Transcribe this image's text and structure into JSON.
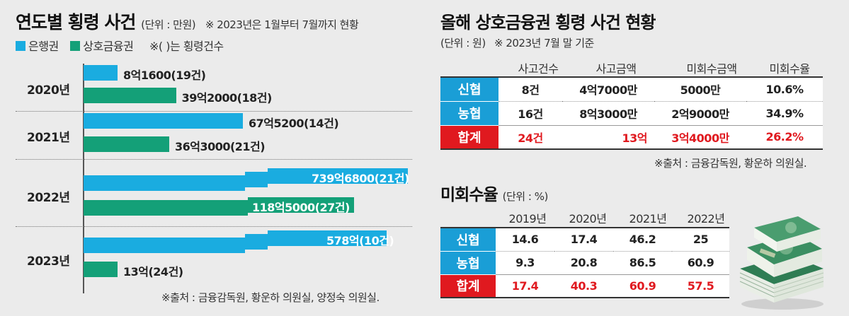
{
  "left": {
    "title": "연도별 횡령 사건",
    "unit": "(단위 : 만원)",
    "note": "※ 2023년은 1월부터 7월까지 현황",
    "legend": {
      "bank": "은행권",
      "mutual": "상호금융권",
      "note": "※( )는 횡령건수"
    },
    "source": "※출처 : 금융감독원, 황운하 의원실, 양정숙 의원실.",
    "colors": {
      "bank": "#1aace0",
      "mutual": "#14a078"
    }
  },
  "chart_data": {
    "type": "bar",
    "orientation": "horizontal",
    "categories": [
      "2020년",
      "2021년",
      "2022년",
      "2023년"
    ],
    "series": [
      {
        "name": "은행권",
        "values": [
          81600,
          675200,
          7396800,
          5780000
        ],
        "labels": [
          "8억1600(19건)",
          "67억5200(14건)",
          "739억6800(21건)",
          "578억(10건)"
        ]
      },
      {
        "name": "상호금융권",
        "values": [
          392000,
          363000,
          1185000,
          130000
        ],
        "labels": [
          "39억2000(18건)",
          "36억3000(21건)",
          "118억5000(27건)",
          "13억(24건)"
        ]
      }
    ]
  },
  "right_top": {
    "title": "올해 상호금융권 횡령 사건 현황",
    "unit": "(단위 : 원)",
    "note": "※ 2023년 7월 말 기준",
    "columns": [
      "사고건수",
      "사고금액",
      "미회수금액",
      "미회수율"
    ],
    "rows": [
      {
        "name": "신협",
        "values": [
          "8건",
          "4억7000만",
          "5000만",
          "10.6%"
        ]
      },
      {
        "name": "농협",
        "values": [
          "16건",
          "8억3000만",
          "2억9000만",
          "34.9%"
        ]
      },
      {
        "name": "합계",
        "values": [
          "24건",
          "13억",
          "3억4000만",
          "26.2%"
        ]
      }
    ],
    "source": "※출처 : 금융감독원, 황운하 의원실."
  },
  "right_bottom": {
    "title": "미회수율",
    "unit": "(단위 : %)",
    "columns": [
      "2019년",
      "2020년",
      "2021년",
      "2022년"
    ],
    "rows": [
      {
        "name": "신협",
        "values": [
          "14.6",
          "17.4",
          "46.2",
          "25"
        ]
      },
      {
        "name": "농협",
        "values": [
          "9.3",
          "20.8",
          "86.5",
          "60.9"
        ]
      },
      {
        "name": "합계",
        "values": [
          "17.4",
          "40.3",
          "60.9",
          "57.5"
        ]
      }
    ]
  },
  "colors": {
    "rowhead_blue": "#1a9ed6",
    "rowhead_red": "#e0191f"
  },
  "money_illustration": {
    "icon": "money-bundle-icon"
  }
}
